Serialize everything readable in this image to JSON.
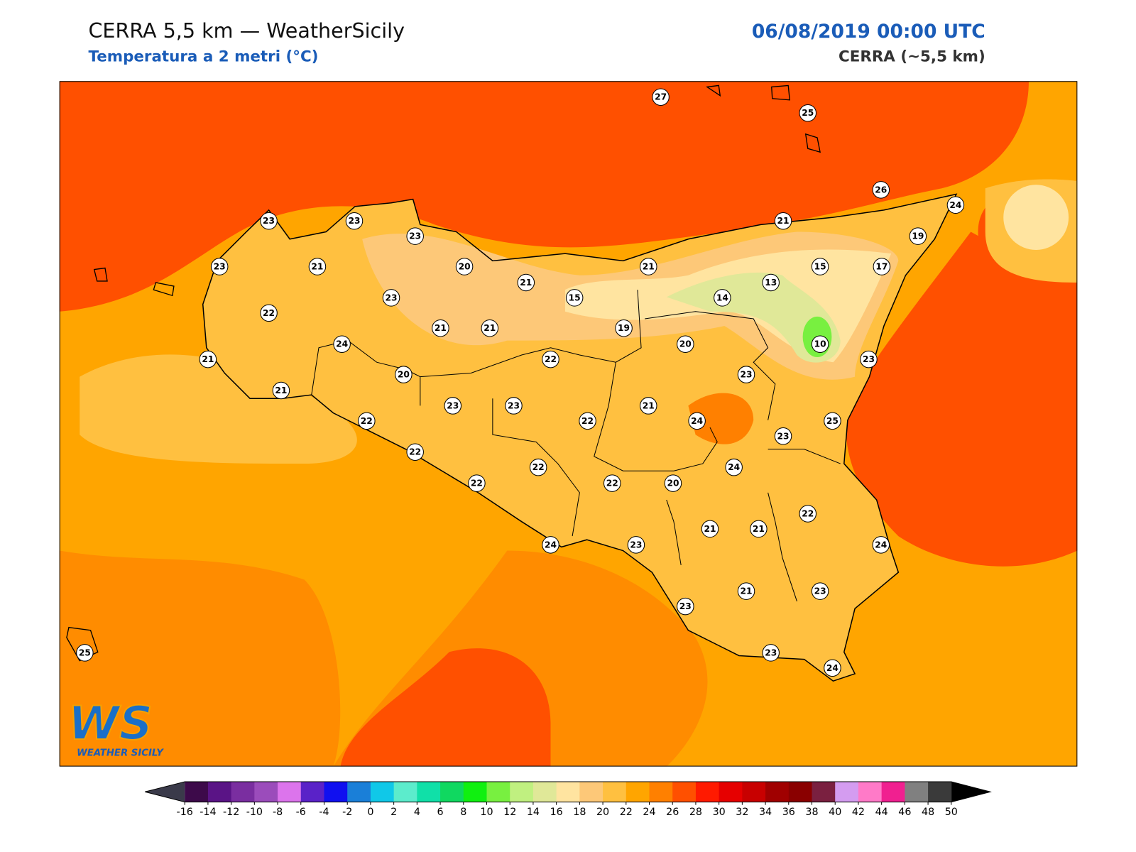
{
  "header": {
    "title": "CERRA 5,5 km — WeatherSicily",
    "subtitle": "Temperatura a 2 metri (°C)",
    "date": "06/08/2019 00:00 UTC",
    "model": "CERRA (~5,5 km)"
  },
  "stations": [
    27,
    25,
    26,
    24,
    19,
    21,
    23,
    23,
    23,
    23,
    21,
    20,
    21,
    21,
    15,
    17,
    13,
    14,
    15,
    23,
    22,
    21,
    21,
    19,
    20,
    10,
    24,
    21,
    22,
    23,
    20,
    23,
    21,
    23,
    23,
    21,
    22,
    22,
    24,
    25,
    23,
    22,
    22,
    24,
    22,
    22,
    20,
    22,
    21,
    21,
    24,
    23,
    24,
    21,
    23,
    23,
    25,
    23,
    24
  ],
  "colorbar": {
    "ticks": [
      -16,
      -14,
      -12,
      -10,
      -8,
      -6,
      -4,
      -2,
      0,
      2,
      4,
      6,
      8,
      10,
      12,
      14,
      16,
      18,
      20,
      22,
      24,
      26,
      28,
      30,
      32,
      34,
      36,
      38,
      40,
      42,
      44,
      46,
      48,
      50
    ],
    "colors": [
      "#3d0a4a",
      "#5a1486",
      "#7a2ea0",
      "#9b4cbb",
      "#dc74ec",
      "#5a22c8",
      "#1010f0",
      "#1a7fd8",
      "#10c8e8",
      "#5ceccc",
      "#10e0a8",
      "#10d860",
      "#10f010",
      "#78f040",
      "#c0f080",
      "#e0e898",
      "#ffe4a0",
      "#fdc878",
      "#ffc040",
      "#ffa500",
      "#ff8000",
      "#ff5000",
      "#ff1a00",
      "#e60000",
      "#c80000",
      "#a00000",
      "#8a0000",
      "#7a2040",
      "#d49cf0",
      "#ff7ac8",
      "#f02090",
      "#808080",
      "#3a3a3a"
    ],
    "under": "#3a3a4a",
    "over": "#000000"
  },
  "logo": {
    "mark": "WS",
    "name": "WEATHER SICILY"
  }
}
